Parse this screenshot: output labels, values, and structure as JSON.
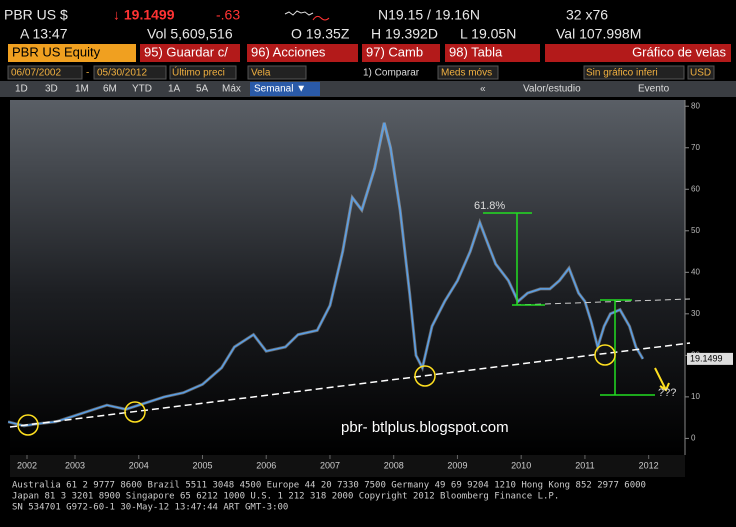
{
  "terminal": {
    "ticker": "PBR US $",
    "price": "↓ 19.1499",
    "change": "-.63",
    "bid_ask": "N19.15 / 19.16N",
    "size": "32 x76",
    "time": "A 13:47",
    "volume": "Vol 5,609,516",
    "open": "O 19.35Z",
    "high": "H 19.392D",
    "low": "L 19.05N",
    "value": "Val 107.998M",
    "security": "PBR US Equity",
    "buttons": [
      "95) Guardar c/",
      "96) Acciones",
      "97) Camb",
      "98) Tabla"
    ],
    "view": "Gráfico de velas",
    "start_date": "06/07/2002",
    "date_sep": "-",
    "end_date": "05/30/2012",
    "field": "Último preci",
    "style": "Vela",
    "compare": "1) Comparar",
    "averages": "Meds móvs",
    "lower_chart": "Sin gráfico inferi",
    "currency": "USD",
    "ranges": [
      "1D",
      "3D",
      "1M",
      "6M",
      "YTD",
      "1A",
      "5A",
      "Máx"
    ],
    "period": "Semanal ▼",
    "nav": "«",
    "study": "Valor/estudio",
    "event": "Evento",
    "footer": [
      "Australia 61 2 9777 8600 Brazil 5511 3048 4500 Europe 44 20 7330 7500 Germany 49 69 9204 1210 Hong Kong 852 2977 6000",
      "Japan 81 3 3201 8900        Singapore 65 6212 1000        U.S. 1 212 318 2000        Copyright 2012 Bloomberg Finance L.P.",
      "SN 534701 G972-60-1 30-May-12 13:47:44 ART  GMT-3:00"
    ]
  },
  "chart_data": {
    "type": "line",
    "series": [
      {
        "name": "PBR US",
        "color": "#5aa0e8",
        "x": [
          2002.45,
          2002.7,
          2002.9,
          2003.2,
          2003.5,
          2003.8,
          2004.0,
          2004.3,
          2004.6,
          2004.9,
          2005.2,
          2005.5,
          2005.8,
          2006.0,
          2006.3,
          2006.5,
          2006.8,
          2007.0,
          2007.3,
          2007.5,
          2007.7,
          2007.85,
          2008.0,
          2008.2,
          2008.35,
          2008.45,
          2008.6,
          2008.75,
          2008.85,
          2008.95,
          2009.1,
          2009.3,
          2009.5,
          2009.7,
          2009.85,
          2009.95,
          2010.1,
          2010.3,
          2010.45,
          2010.6,
          2010.8,
          2010.95,
          2011.1,
          2011.25,
          2011.4,
          2011.5,
          2011.6,
          2011.7,
          2011.8,
          2011.9,
          2012.05,
          2012.2,
          2012.3,
          2012.41
        ],
        "values": [
          4,
          3,
          3.5,
          4,
          5.5,
          7,
          8,
          7,
          8.5,
          10,
          11,
          13,
          17,
          22,
          25,
          21,
          22,
          25,
          26,
          32,
          45,
          58,
          55,
          65,
          76,
          70,
          55,
          35,
          20,
          17,
          27,
          33,
          38,
          45,
          52,
          48,
          42,
          38,
          33,
          35,
          36,
          36,
          38,
          41,
          35,
          33,
          28,
          22,
          27,
          30,
          31,
          27,
          22,
          19.15
        ]
      }
    ],
    "last_price": 19.1499,
    "xlim": [
      2002.48,
      2013.07
    ],
    "xticks": [
      {
        "value": 2002.6,
        "label": "2002"
      },
      {
        "value": 2003.5,
        "label": "2003"
      },
      {
        "value": 2004.5,
        "label": "2004"
      },
      {
        "value": 2005.5,
        "label": "2005"
      },
      {
        "value": 2006.5,
        "label": "2006"
      },
      {
        "value": 2007.5,
        "label": "2007"
      },
      {
        "value": 2008.5,
        "label": "2008"
      },
      {
        "value": 2009.5,
        "label": "2009"
      },
      {
        "value": 2010.5,
        "label": "2010"
      },
      {
        "value": 2011.5,
        "label": "2011"
      },
      {
        "value": 2012.5,
        "label": "2012"
      }
    ],
    "ylim": [
      -4,
      81.5
    ],
    "yticks": [
      0,
      10,
      20,
      30,
      40,
      50,
      60,
      70,
      80
    ],
    "annotations": [
      "61.8%",
      "???",
      "pbr- btlplus.blogspot.com"
    ]
  }
}
